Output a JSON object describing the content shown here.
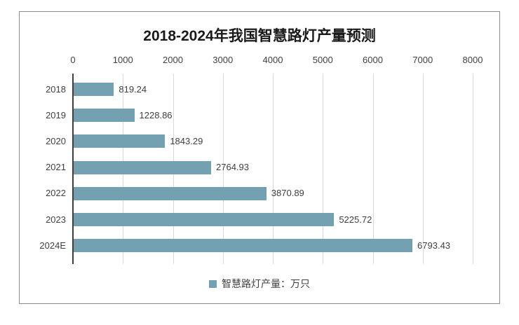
{
  "chart_data": {
    "type": "bar",
    "orientation": "horizontal",
    "title": "2018-2024年我国智慧路灯产量预测",
    "categories": [
      "2018",
      "2019",
      "2020",
      "2021",
      "2022",
      "2023",
      "2024E"
    ],
    "values": [
      819.24,
      1228.86,
      1843.29,
      2764.93,
      3870.89,
      5225.72,
      6793.43
    ],
    "value_labels": [
      "819.24",
      "1228.86",
      "1843.29",
      "2764.93",
      "3870.89",
      "5225.72",
      "6793.43"
    ],
    "series_name": "智慧路灯产量：万只",
    "xlim": [
      0,
      8000
    ],
    "x_ticks": [
      0,
      1000,
      2000,
      3000,
      4000,
      5000,
      6000,
      7000,
      8000
    ],
    "x_tick_labels": [
      "0",
      "1000",
      "2000",
      "3000",
      "4000",
      "5000",
      "6000",
      "7000",
      "8000"
    ],
    "grid": true,
    "tick_position": "top",
    "legend_position": "bottom",
    "bar_color": "#74A1B2",
    "gridline_color": "#D9D9D9",
    "axis_color": "#404040",
    "border_color": "#8C8C8C",
    "label_color": "#404040",
    "title_color": "#1a1a1a"
  }
}
